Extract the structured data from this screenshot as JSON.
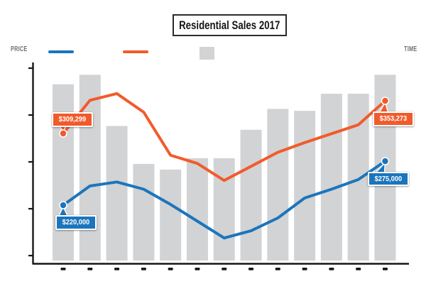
{
  "title": "Residential Sales 2017",
  "legend": {
    "left_axis_label": "PRICE",
    "right_axis_label": "TIME",
    "items": [
      {
        "name": "blue-line-swatch",
        "swatch": "line",
        "color": "#1b75bc"
      },
      {
        "name": "orange-line-swatch",
        "swatch": "line",
        "color": "#f15b2c"
      },
      {
        "name": "bars-swatch",
        "swatch": "square",
        "color": "#d2d3d5"
      }
    ]
  },
  "colors": {
    "blue": "#1b75bc",
    "orange": "#f15b2c",
    "bar_gray": "#d2d3d5",
    "label_gray": "#6d6e71",
    "ink": "#161616",
    "background": "#ffffff"
  },
  "chart_data": {
    "type": "bar+line",
    "title": "Residential Sales 2017",
    "xlabel": "TIME",
    "ylabel": "PRICE",
    "grid": false,
    "legend_position": "top",
    "categories": [
      "",
      "",
      "",
      "",
      "",
      "",
      "",
      "",
      "",
      "",
      "",
      "",
      ""
    ],
    "bar_series": {
      "name": "bars",
      "color": "#d2d3d5",
      "values_relative": [
        0.93,
        0.98,
        0.71,
        0.51,
        0.48,
        0.54,
        0.54,
        0.69,
        0.8,
        0.79,
        0.88,
        0.88,
        0.98
      ]
    },
    "line_series": [
      {
        "name": "line-blue",
        "color": "#1b75bc",
        "values": [
          220000,
          244000,
          249000,
          240000,
          221000,
          200000,
          179000,
          188000,
          204000,
          229000,
          240000,
          252000,
          275000
        ]
      },
      {
        "name": "line-orange",
        "color": "#f15b2c",
        "values": [
          309299,
          354000,
          363000,
          338000,
          280000,
          269000,
          246000,
          265000,
          284000,
          297000,
          309000,
          321000,
          353273
        ]
      }
    ],
    "callouts": [
      {
        "text": "$309,299",
        "series": 1,
        "point": 0
      },
      {
        "text": "$220,000",
        "series": 0,
        "point": 0
      },
      {
        "text": "$353,273",
        "series": 1,
        "point": 12
      },
      {
        "text": "$275,000",
        "series": 0,
        "point": 12
      }
    ],
    "axis": {
      "left_tick_count": 5,
      "bottom_tick_count": 13,
      "numeric_labels_visible": false
    }
  }
}
